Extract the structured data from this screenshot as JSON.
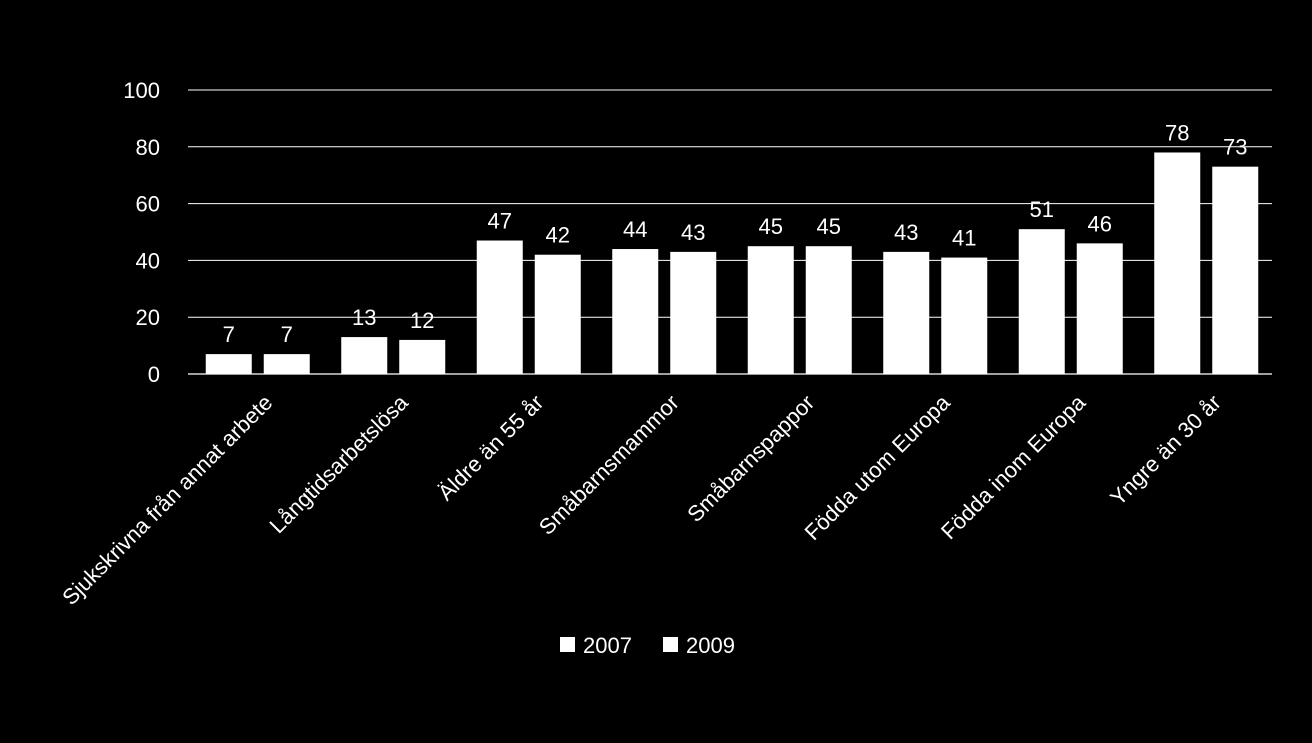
{
  "chart_data": {
    "type": "bar",
    "categories": [
      "Sjukskrivna från annat arbete",
      "Långtidsarbetslösa",
      "Äldre än 55 år",
      "Småbarnsmammor",
      "Småbarnspappor",
      "Födda utom Europa",
      "Födda inom Europa",
      "Yngre än 30 år"
    ],
    "series": [
      {
        "name": "2007",
        "values": [
          7,
          13,
          47,
          44,
          45,
          43,
          51,
          78
        ],
        "color": "#ffffff"
      },
      {
        "name": "2009",
        "values": [
          7,
          12,
          42,
          43,
          45,
          41,
          46,
          73
        ],
        "color": "#ffffff"
      }
    ],
    "yticks": [
      "0",
      "20",
      "40",
      "60",
      "80",
      "100"
    ],
    "ylim": [
      0,
      100
    ],
    "grid": true,
    "legend_position": "bottom",
    "data_labels": true,
    "background": "#000000",
    "foreground": "#ffffff"
  }
}
